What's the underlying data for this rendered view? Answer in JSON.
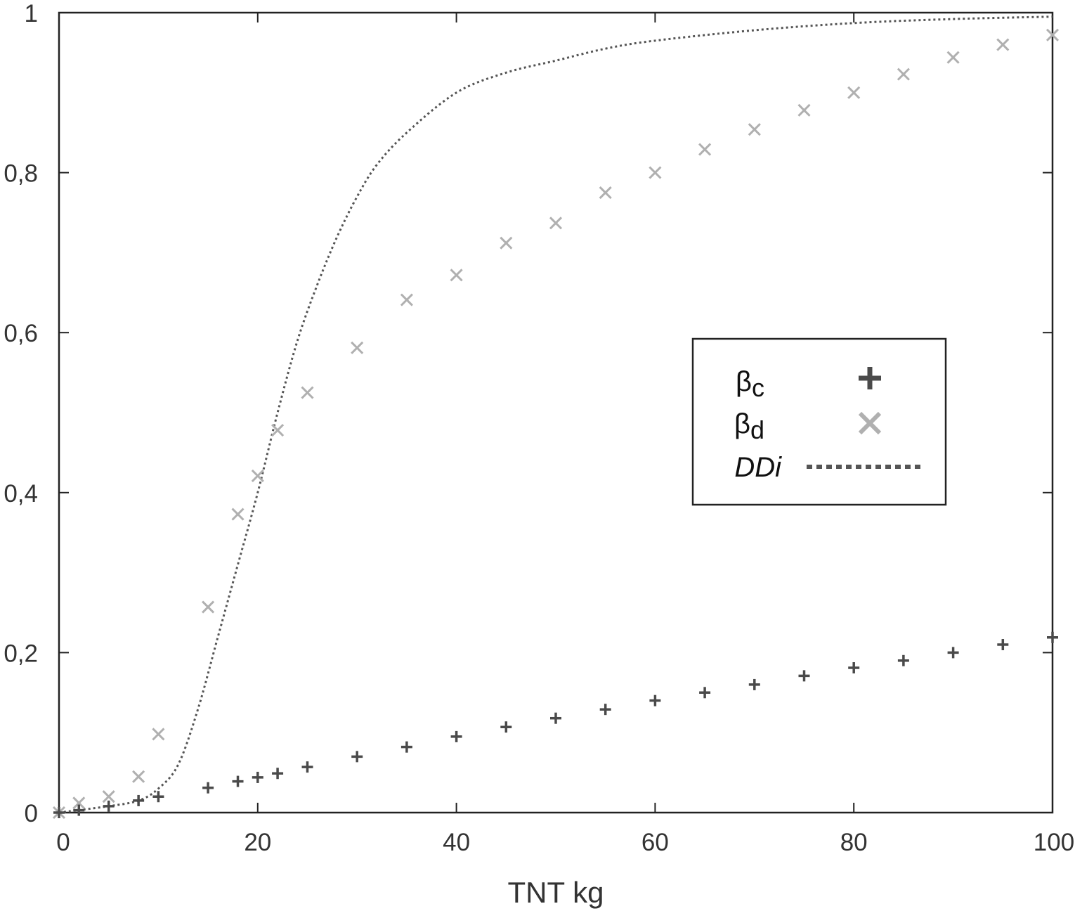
{
  "chart_data": {
    "type": "scatter",
    "title": "",
    "xlabel": "TNT kg",
    "ylabel": "",
    "xlim": [
      0,
      100
    ],
    "ylim": [
      0,
      1
    ],
    "x_ticks": [
      "0",
      "20",
      "40",
      "60",
      "80",
      "100"
    ],
    "y_ticks": [
      "0",
      "0,2",
      "0,4",
      "0,6",
      "0,8",
      "1"
    ],
    "grid": false,
    "legend_position": "center-right",
    "legend": [
      {
        "symbol": "β",
        "subscript": "c"
      },
      {
        "symbol": "β",
        "subscript": "d"
      },
      {
        "symbol": "DDi",
        "subscript": ""
      }
    ],
    "series": [
      {
        "key": "beta_c",
        "marker": "plus",
        "color": "#4a4a4a",
        "x": [
          0,
          2,
          5,
          8,
          10,
          15,
          18,
          20,
          22,
          25,
          30,
          35,
          40,
          45,
          50,
          55,
          60,
          65,
          70,
          75,
          80,
          85,
          90,
          95,
          100
        ],
        "y": [
          0.0,
          0.003,
          0.008,
          0.015,
          0.02,
          0.031,
          0.039,
          0.044,
          0.049,
          0.057,
          0.07,
          0.082,
          0.095,
          0.107,
          0.118,
          0.129,
          0.14,
          0.15,
          0.16,
          0.171,
          0.181,
          0.19,
          0.2,
          0.21,
          0.219
        ]
      },
      {
        "key": "beta_d",
        "marker": "cross",
        "color": "#b0b0b0",
        "x": [
          0,
          2,
          5,
          8,
          10,
          15,
          18,
          20,
          22,
          25,
          30,
          35,
          40,
          45,
          50,
          55,
          60,
          65,
          70,
          75,
          80,
          85,
          90,
          95,
          100
        ],
        "y": [
          0.0,
          0.012,
          0.02,
          0.045,
          0.098,
          0.257,
          0.373,
          0.421,
          0.478,
          0.525,
          0.581,
          0.641,
          0.672,
          0.712,
          0.737,
          0.775,
          0.8,
          0.829,
          0.854,
          0.878,
          0.9,
          0.923,
          0.944,
          0.96,
          0.972
        ]
      },
      {
        "key": "ddi",
        "style": "dotted-line",
        "color": "#555555",
        "x": [
          0,
          5,
          8,
          10,
          12,
          14,
          16,
          18,
          20,
          22,
          24,
          26,
          28,
          30,
          32,
          35,
          40,
          45,
          50,
          55,
          60,
          70,
          80,
          90,
          100
        ],
        "y": [
          0.0,
          0.008,
          0.015,
          0.03,
          0.06,
          0.13,
          0.22,
          0.31,
          0.4,
          0.5,
          0.59,
          0.66,
          0.72,
          0.77,
          0.81,
          0.85,
          0.9,
          0.925,
          0.94,
          0.955,
          0.965,
          0.978,
          0.987,
          0.992,
          0.995
        ]
      }
    ]
  }
}
